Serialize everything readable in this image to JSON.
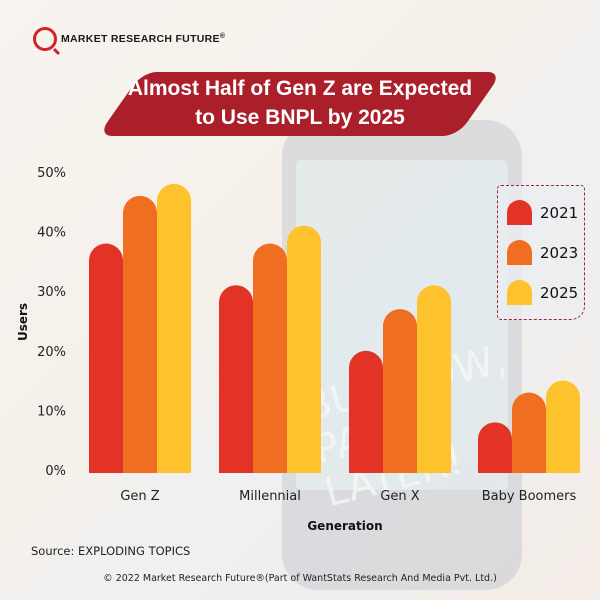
{
  "brand": {
    "name": "MARKET RESEARCH FUTURE",
    "registered": "®"
  },
  "banner": {
    "line1": "Almost Half of Gen Z are Expected",
    "line2": "to Use BNPL by 2025"
  },
  "background": {
    "phone_text_line1": "BUY NOW,",
    "phone_text_line2": "PAY LATER!"
  },
  "colors": {
    "2021": "#e33226",
    "2023": "#ef6e22",
    "2025": "#fdc22c",
    "banner": "#ab1f2a"
  },
  "chart_data": {
    "type": "bar",
    "title": "Almost Half of Gen Z are Expected to Use BNPL by 2025",
    "xlabel": "Generation",
    "ylabel": "Users",
    "categories": [
      "Gen Z",
      "Millennial",
      "Gen X",
      "Baby Boomers"
    ],
    "series": [
      {
        "name": "2021",
        "values": [
          38,
          31,
          20,
          8
        ]
      },
      {
        "name": "2023",
        "values": [
          46,
          38,
          27,
          13
        ]
      },
      {
        "name": "2025",
        "values": [
          48,
          41,
          31,
          15
        ]
      }
    ],
    "yticks": [
      "0%",
      "10%",
      "20%",
      "30%",
      "40%",
      "50%"
    ],
    "ylim": [
      0,
      50
    ],
    "unit": "%",
    "grid": false,
    "legend_position": "right"
  },
  "legend": [
    {
      "label": "2021"
    },
    {
      "label": "2023"
    },
    {
      "label": "2025"
    }
  ],
  "footer": {
    "source": "Source: EXPLODING TOPICS",
    "copyright": "© 2022 Market Research Future®(Part of WantStats Research And Media Pvt. Ltd.)"
  }
}
